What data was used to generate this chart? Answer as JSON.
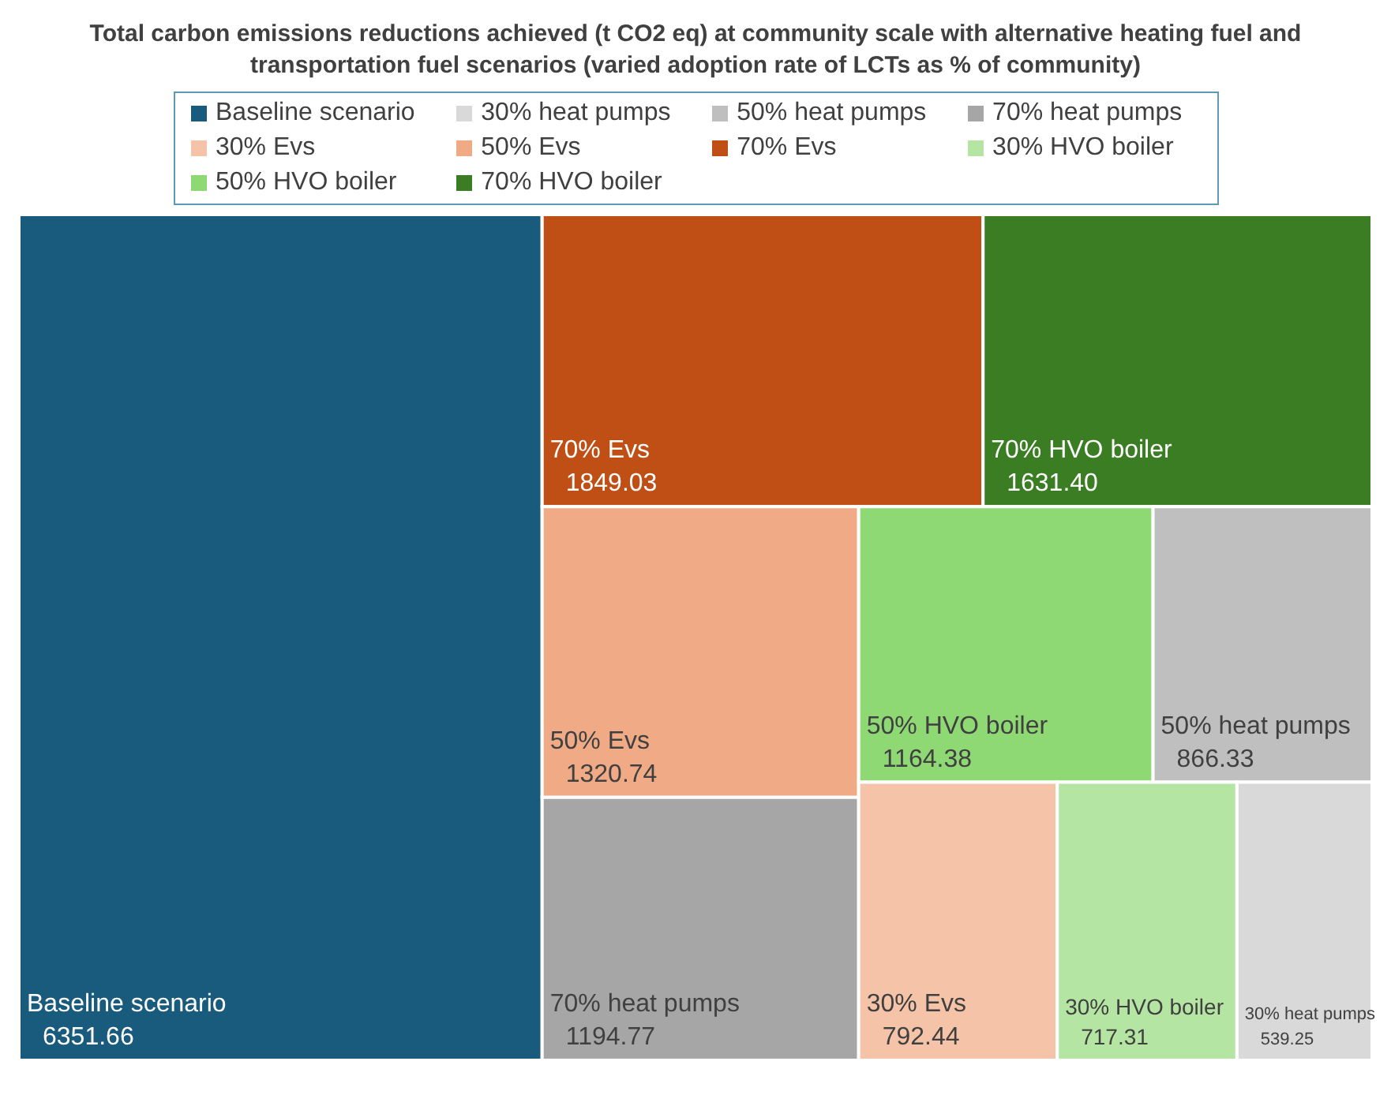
{
  "chart_data": {
    "type": "other",
    "title": "Total carbon emissions reductions achieved (t CO2 eq) at community scale with alternative heating fuel and transportation fuel scenarios (varied adoption rate of LCTs as % of community)",
    "categories": [
      "Baseline scenario",
      "30% heat pumps",
      "50% heat pumps",
      "70% heat pumps",
      "30% Evs",
      "50% Evs",
      "70% Evs",
      "30% HVO boiler",
      "50% HVO boiler",
      "70% HVO boiler"
    ],
    "values": [
      6351.66,
      539.25,
      866.33,
      1194.77,
      792.44,
      1320.74,
      1849.03,
      717.31,
      1164.38,
      1631.4
    ],
    "value_labels": [
      "6351.66",
      "539.25",
      "866.33",
      "1194.77",
      "792.44",
      "1320.74",
      "1849.03",
      "717.31",
      "1164.38",
      "1631.40"
    ],
    "colors": [
      "#195b7c",
      "#d9d9d9",
      "#bfbfbf",
      "#a6a6a6",
      "#f5c4a8",
      "#f0aa85",
      "#c04f15",
      "#b4e5a2",
      "#8fd975",
      "#3b7d23"
    ]
  }
}
